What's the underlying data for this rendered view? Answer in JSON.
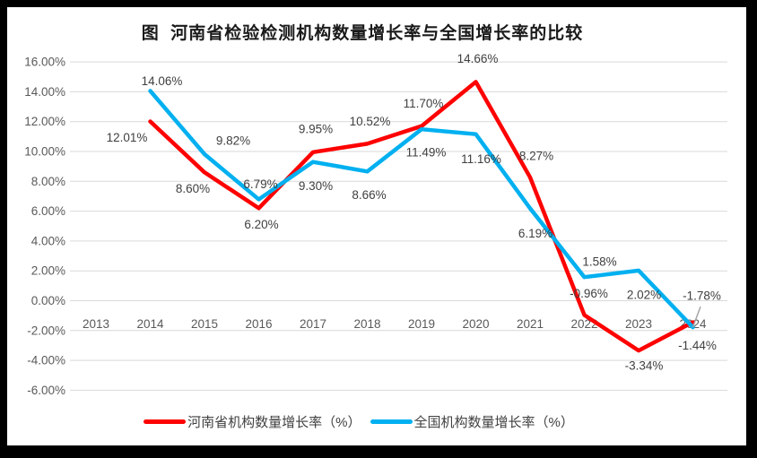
{
  "window": {
    "frame_color": "#000000",
    "background_color": "#FFFFFF"
  },
  "chart_data": {
    "type": "line",
    "title": "图  河南省检验检测机构数量增长率与全国增长率的比较",
    "categories": [
      "2013",
      "2014",
      "2015",
      "2016",
      "2017",
      "2018",
      "2019",
      "2020",
      "2021",
      "2022",
      "2023",
      "2024"
    ],
    "series": [
      {
        "name": "河南省机构数量增长率（%）",
        "color": "#FF0000",
        "values": [
          null,
          12.01,
          8.6,
          6.2,
          9.95,
          10.52,
          11.7,
          14.66,
          8.27,
          -0.96,
          -3.34,
          -1.44
        ],
        "labels": [
          "",
          "12.01%",
          "8.60%",
          "6.20%",
          "9.95%",
          "10.52%",
          "11.70%",
          "14.66%",
          "8.27%",
          "-0.96%",
          "-3.34%",
          "-1.44%"
        ]
      },
      {
        "name": "全国机构数量增长率（%）",
        "color": "#00B0F0",
        "values": [
          null,
          14.06,
          9.82,
          6.79,
          9.3,
          8.66,
          11.49,
          11.16,
          6.19,
          1.58,
          2.02,
          -1.78
        ],
        "labels": [
          "",
          "14.06%",
          "9.82%",
          "6.79%",
          "9.30%",
          "8.66%",
          "11.49%",
          "11.16%",
          "6.19%",
          "1.58%",
          "2.02%",
          "-1.78%"
        ]
      }
    ],
    "ylim": [
      -6,
      16
    ],
    "ytick_step": 2,
    "ytick_labels": [
      "16.00%",
      "14.00%",
      "12.00%",
      "10.00%",
      "8.00%",
      "6.00%",
      "4.00%",
      "2.00%",
      "0.00%",
      "-2.00%",
      "-4.00%",
      "-6.00%"
    ],
    "grid": true,
    "legend_position": "bottom",
    "gridline_color": "#D9D9D9",
    "axis_label_color": "#595959",
    "data_label_color": "#3F3F3F",
    "leader_line_color": "#A6A6A6"
  }
}
